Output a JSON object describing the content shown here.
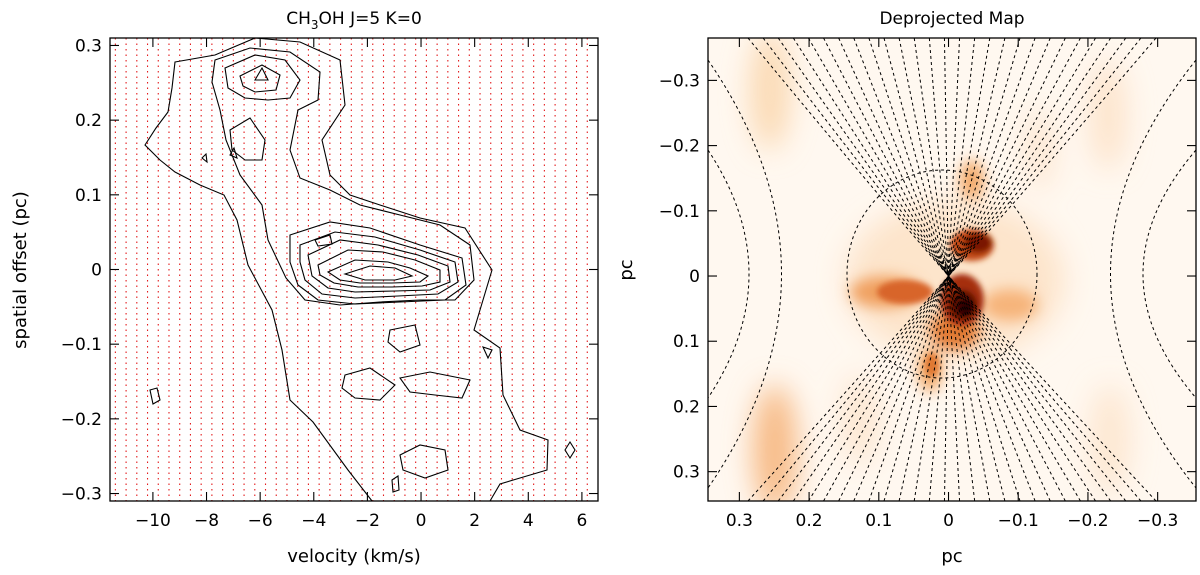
{
  "chart_data": [
    {
      "type": "contour",
      "title": "CH3OH J=5 K=0",
      "title_parts": {
        "pre": "CH",
        "sub": "3",
        "post": "OH J=5 K=0"
      },
      "xlabel": "velocity (km/s)",
      "ylabel": "spatial offset (pc)",
      "xlim": [
        -11.6,
        6.6
      ],
      "ylim": [
        -0.31,
        0.31
      ],
      "xticks": [
        -10,
        -8,
        -6,
        -4,
        -2,
        0,
        2,
        4,
        6
      ],
      "yticks": [
        -0.3,
        -0.2,
        -0.1,
        0,
        0.1,
        0.2,
        0.3
      ],
      "xtick_labels": [
        "−10",
        "−8",
        "−6",
        "−4",
        "−2",
        "0",
        "2",
        "4",
        "6"
      ],
      "ytick_labels": [
        "−0.3",
        "−0.2",
        "−0.1",
        "0",
        "0.1",
        "0.2",
        "0.3"
      ],
      "sampling_line_spacing_kms": 0.4,
      "sampling_line_color": "#e31a1c",
      "contour_color": "#000000",
      "peak_position": {
        "velocity": -0.8,
        "offset": -0.02
      }
    },
    {
      "type": "heatmap",
      "title": "Deprojected Map",
      "xlabel": "pc",
      "ylabel": "pc",
      "xlim": [
        0.345,
        -0.355
      ],
      "ylim": [
        -0.365,
        0.345
      ],
      "xticks": [
        0.3,
        0.2,
        0.1,
        0,
        -0.1,
        -0.2,
        -0.3
      ],
      "yticks": [
        -0.3,
        -0.2,
        -0.1,
        0,
        0.1,
        0.2,
        0.3
      ],
      "xtick_labels": [
        "0.3",
        "0.2",
        "0.1",
        "0",
        "−0.1",
        "−0.2",
        "−0.3"
      ],
      "ytick_labels": [
        "−0.3",
        "−0.2",
        "−0.1",
        "0",
        "0.1",
        "0.2",
        "0.3"
      ],
      "colormap": [
        "#fff8f0",
        "#fbd3a8",
        "#f0a060",
        "#d25a1c",
        "#8e1f0a",
        "#2a0300"
      ],
      "overlay_line_color": "#000000",
      "peaks": [
        {
          "x": -0.03,
          "y": -0.05
        },
        {
          "x": -0.02,
          "y": 0.03
        },
        {
          "x": 0.05,
          "y": 0.025
        },
        {
          "x": -0.04,
          "y": -0.16
        },
        {
          "x": 0.0,
          "y": 0.14
        }
      ]
    }
  ]
}
